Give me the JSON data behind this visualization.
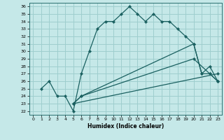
{
  "title": "",
  "xlabel": "Humidex (Indice chaleur)",
  "bg_color": "#c5e8e8",
  "grid_color": "#9ecece",
  "line_color": "#1a6060",
  "xlim": [
    -0.5,
    23.5
  ],
  "ylim": [
    21.5,
    36.5
  ],
  "xticks": [
    0,
    1,
    2,
    3,
    4,
    5,
    6,
    7,
    8,
    9,
    10,
    11,
    12,
    13,
    14,
    15,
    16,
    17,
    18,
    19,
    20,
    21,
    22,
    23
  ],
  "yticks": [
    22,
    23,
    24,
    25,
    26,
    27,
    28,
    29,
    30,
    31,
    32,
    33,
    34,
    35,
    36
  ],
  "lines": [
    {
      "x": [
        1,
        2,
        3,
        4,
        5,
        6,
        7,
        8,
        9,
        10,
        11,
        12,
        13,
        14,
        15,
        16,
        17,
        18,
        19,
        20,
        21,
        22,
        23
      ],
      "y": [
        25,
        26,
        24,
        24,
        22,
        27,
        30,
        33,
        34,
        34,
        35,
        36,
        35,
        34,
        35,
        34,
        34,
        33,
        32,
        31,
        27,
        27,
        26
      ]
    },
    {
      "x": [
        5,
        6,
        20,
        21,
        22,
        23
      ],
      "y": [
        23,
        24,
        31,
        27,
        28,
        26
      ]
    },
    {
      "x": [
        5,
        6,
        20,
        22,
        23
      ],
      "y": [
        23,
        24,
        29,
        27,
        26
      ]
    },
    {
      "x": [
        5,
        23
      ],
      "y": [
        23,
        27
      ]
    }
  ]
}
